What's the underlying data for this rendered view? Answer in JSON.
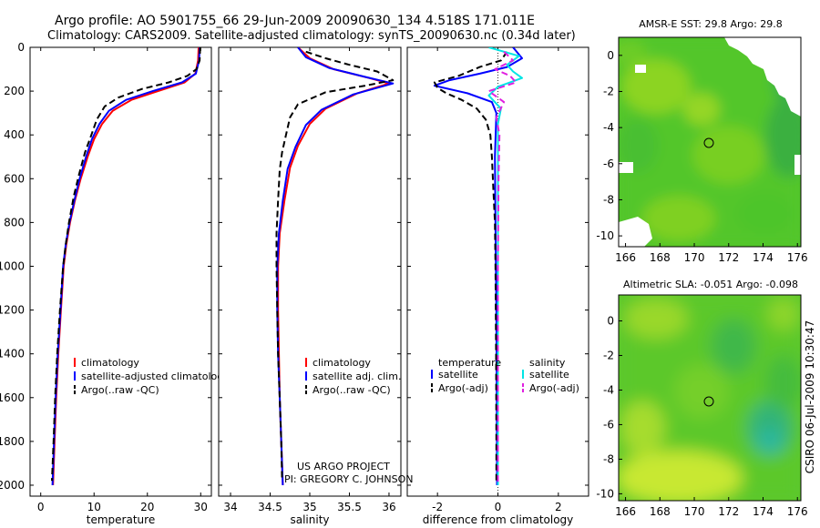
{
  "header": {
    "line1": "Argo profile: AO 5901755_66 29-Jun-2009 20090630_134 4.518S 171.011E",
    "line2": "Climatology: CARS2009. Satellite-adjusted climatology: synTS_20090630.nc (0.34d later)"
  },
  "side_label": "CSIRO 06-Jul-2009 10:30:47",
  "project": {
    "line1": "US ARGO PROJECT",
    "line2": "PI: GREGORY C. JOHNSON"
  },
  "colors": {
    "climatology": "#ff0000",
    "satellite": "#0000ff",
    "argo": "#000000",
    "sal_satellite": "#00e5e5",
    "sal_argo": "#e020e0"
  },
  "chart_data": [
    {
      "id": "temperature",
      "type": "line",
      "xlabel": "temperature",
      "xlim": [
        -2,
        32
      ],
      "ylim": [
        2050,
        0
      ],
      "xticks": [
        0,
        10,
        20,
        30
      ],
      "yticks": [
        0,
        200,
        400,
        600,
        800,
        1000,
        1200,
        1400,
        1600,
        1800,
        2000
      ],
      "legend": [
        "climatology",
        "satellite-adjusted climatology",
        "Argo(..raw -QC)"
      ],
      "series": [
        {
          "name": "climatology",
          "style": "solid",
          "color": "#ff0000",
          "points": [
            [
              29.6,
              0
            ],
            [
              29.5,
              60
            ],
            [
              29.0,
              120
            ],
            [
              27.0,
              160
            ],
            [
              22.0,
              200
            ],
            [
              17.0,
              240
            ],
            [
              13.5,
              290
            ],
            [
              11.5,
              350
            ],
            [
              10.0,
              420
            ],
            [
              8.8,
              500
            ],
            [
              7.5,
              600
            ],
            [
              6.4,
              700
            ],
            [
              5.5,
              800
            ],
            [
              4.8,
              900
            ],
            [
              4.3,
              1000
            ],
            [
              3.8,
              1200
            ],
            [
              3.3,
              1400
            ],
            [
              2.9,
              1600
            ],
            [
              2.6,
              1800
            ],
            [
              2.3,
              2000
            ]
          ]
        },
        {
          "name": "satellite-adjusted climatology",
          "style": "solid",
          "color": "#0000ff",
          "points": [
            [
              29.8,
              0
            ],
            [
              29.7,
              60
            ],
            [
              29.1,
              120
            ],
            [
              26.5,
              160
            ],
            [
              21.0,
              200
            ],
            [
              16.0,
              240
            ],
            [
              12.8,
              290
            ],
            [
              11.0,
              350
            ],
            [
              9.6,
              420
            ],
            [
              8.5,
              500
            ],
            [
              7.3,
              600
            ],
            [
              6.3,
              700
            ],
            [
              5.4,
              800
            ],
            [
              4.7,
              900
            ],
            [
              4.2,
              1000
            ],
            [
              3.7,
              1200
            ],
            [
              3.2,
              1400
            ],
            [
              2.8,
              1600
            ],
            [
              2.5,
              1800
            ],
            [
              2.2,
              2000
            ]
          ]
        },
        {
          "name": "Argo(..raw -QC)",
          "style": "dashed",
          "color": "#000000",
          "points": [
            [
              29.9,
              0
            ],
            [
              29.8,
              60
            ],
            [
              29.2,
              100
            ],
            [
              27.5,
              130
            ],
            [
              24.0,
              160
            ],
            [
              19.0,
              190
            ],
            [
              14.5,
              230
            ],
            [
              12.0,
              270
            ],
            [
              10.5,
              330
            ],
            [
              9.5,
              400
            ],
            [
              8.3,
              480
            ],
            [
              7.2,
              580
            ],
            [
              6.2,
              680
            ],
            [
              5.3,
              800
            ],
            [
              4.7,
              900
            ],
            [
              4.2,
              1000
            ],
            [
              3.6,
              1200
            ],
            [
              3.1,
              1400
            ],
            [
              2.7,
              1600
            ],
            [
              2.4,
              1800
            ],
            [
              2.1,
              1980
            ]
          ]
        }
      ]
    },
    {
      "id": "salinity",
      "type": "line",
      "xlabel": "salinity",
      "xlim": [
        33.85,
        36.15
      ],
      "ylim": [
        2050,
        0
      ],
      "xticks": [
        34,
        34.5,
        35,
        35.5,
        36
      ],
      "xticklabels": [
        "34",
        "34.5",
        "35",
        "35.5",
        "36"
      ],
      "legend": [
        "climatology",
        "satellite adj. clim.",
        "Argo(..raw -QC)"
      ],
      "series": [
        {
          "name": "climatology",
          "style": "solid",
          "color": "#ff0000",
          "points": [
            [
              34.85,
              0
            ],
            [
              35.0,
              50
            ],
            [
              35.3,
              100
            ],
            [
              35.75,
              140
            ],
            [
              36.0,
              165
            ],
            [
              35.6,
              210
            ],
            [
              35.2,
              280
            ],
            [
              35.0,
              350
            ],
            [
              34.85,
              450
            ],
            [
              34.75,
              550
            ],
            [
              34.68,
              700
            ],
            [
              34.62,
              850
            ],
            [
              34.6,
              1000
            ],
            [
              34.6,
              1200
            ],
            [
              34.61,
              1400
            ],
            [
              34.62,
              1600
            ],
            [
              34.64,
              1800
            ],
            [
              34.66,
              2000
            ]
          ]
        },
        {
          "name": "satellite adj. clim.",
          "style": "solid",
          "color": "#0000ff",
          "points": [
            [
              34.85,
              0
            ],
            [
              34.95,
              45
            ],
            [
              35.25,
              95
            ],
            [
              35.7,
              135
            ],
            [
              36.05,
              165
            ],
            [
              35.55,
              215
            ],
            [
              35.15,
              285
            ],
            [
              34.95,
              355
            ],
            [
              34.82,
              455
            ],
            [
              34.72,
              555
            ],
            [
              34.66,
              700
            ],
            [
              34.61,
              850
            ],
            [
              34.59,
              1000
            ],
            [
              34.59,
              1200
            ],
            [
              34.6,
              1400
            ],
            [
              34.62,
              1600
            ],
            [
              34.64,
              1800
            ],
            [
              34.66,
              2000
            ]
          ]
        },
        {
          "name": "Argo(..raw -QC)",
          "style": "dashed",
          "color": "#000000",
          "points": [
            [
              34.95,
              20
            ],
            [
              35.2,
              50
            ],
            [
              35.5,
              80
            ],
            [
              35.85,
              110
            ],
            [
              36.05,
              150
            ],
            [
              35.7,
              175
            ],
            [
              35.2,
              205
            ],
            [
              34.85,
              260
            ],
            [
              34.75,
              320
            ],
            [
              34.7,
              400
            ],
            [
              34.65,
              480
            ],
            [
              34.62,
              560
            ],
            [
              34.6,
              700
            ],
            [
              34.58,
              850
            ],
            [
              34.58,
              1000
            ],
            [
              34.59,
              1200
            ],
            [
              34.6,
              1400
            ],
            [
              34.62,
              1600
            ],
            [
              34.64,
              1800
            ],
            [
              34.65,
              1980
            ]
          ]
        }
      ]
    },
    {
      "id": "difference",
      "type": "line",
      "xlabel": "difference from climatology",
      "xlim": [
        -3.0,
        3.0
      ],
      "ylim": [
        2050,
        0
      ],
      "xticks": [
        -2,
        0,
        2
      ],
      "legend_headers": [
        "temperature",
        "salinity"
      ],
      "legend": [
        "satellite",
        "Argo(-adj)",
        "satellite",
        "Argo(-adj)"
      ],
      "series": [
        {
          "name": "temperature satellite",
          "style": "solid",
          "color": "#0000ff",
          "points": [
            [
              0.5,
              0
            ],
            [
              0.8,
              50
            ],
            [
              0.3,
              90
            ],
            [
              -0.6,
              120
            ],
            [
              -1.6,
              150
            ],
            [
              -2.1,
              175
            ],
            [
              -1.0,
              210
            ],
            [
              -0.2,
              250
            ],
            [
              -0.05,
              300
            ],
            [
              -0.1,
              500
            ],
            [
              -0.08,
              800
            ],
            [
              -0.05,
              1200
            ],
            [
              -0.04,
              1600
            ],
            [
              -0.03,
              2000
            ]
          ]
        },
        {
          "name": "temperature Argo(-adj)",
          "style": "dashed",
          "color": "#000000",
          "points": [
            [
              0.3,
              20
            ],
            [
              0.1,
              60
            ],
            [
              -0.6,
              90
            ],
            [
              -1.3,
              130
            ],
            [
              -2.1,
              160
            ],
            [
              -2.0,
              185
            ],
            [
              -1.7,
              210
            ],
            [
              -1.2,
              240
            ],
            [
              -0.7,
              280
            ],
            [
              -0.4,
              330
            ],
            [
              -0.25,
              400
            ],
            [
              -0.2,
              500
            ],
            [
              -0.15,
              650
            ],
            [
              -0.1,
              800
            ],
            [
              -0.08,
              1000
            ],
            [
              -0.06,
              1400
            ],
            [
              -0.05,
              1800
            ],
            [
              -0.05,
              1990
            ]
          ]
        },
        {
          "name": "salinity satellite",
          "style": "solid",
          "color": "#00e5e5",
          "points": [
            [
              -0.3,
              0
            ],
            [
              0.7,
              40
            ],
            [
              0.3,
              80
            ],
            [
              0.5,
              110
            ],
            [
              0.8,
              140
            ],
            [
              0.0,
              180
            ],
            [
              -0.3,
              220
            ],
            [
              0.1,
              280
            ],
            [
              0.0,
              350
            ],
            [
              0.0,
              600
            ],
            [
              0.0,
              900
            ],
            [
              0.0,
              1300
            ],
            [
              0.0,
              1700
            ],
            [
              0.0,
              2000
            ]
          ]
        },
        {
          "name": "salinity Argo(-adj)",
          "style": "dashed",
          "color": "#e020e0",
          "points": [
            [
              0.2,
              20
            ],
            [
              0.5,
              60
            ],
            [
              -0.1,
              100
            ],
            [
              0.4,
              130
            ],
            [
              0.6,
              160
            ],
            [
              -0.3,
              200
            ],
            [
              0.2,
              250
            ],
            [
              -0.05,
              320
            ],
            [
              0.05,
              400
            ],
            [
              0.02,
              600
            ],
            [
              0.0,
              1000
            ],
            [
              0.0,
              1500
            ],
            [
              0.0,
              1990
            ]
          ]
        }
      ]
    },
    {
      "id": "sst_map",
      "type": "heatmap",
      "title": "AMSR-E SST: 29.8 Argo: 29.8",
      "xlim": [
        165.6,
        176.2
      ],
      "ylim": [
        -10.6,
        1.0
      ],
      "xticks": [
        166,
        168,
        170,
        172,
        174,
        176
      ],
      "yticks": [
        0,
        -2,
        -4,
        -6,
        -8,
        -10
      ],
      "marker": [
        171.011,
        -4.518
      ]
    },
    {
      "id": "sla_map",
      "type": "heatmap",
      "title": "Altimetric SLA: -0.051 Argo: -0.098",
      "xlim": [
        165.6,
        176.2
      ],
      "ylim": [
        -10.4,
        1.5
      ],
      "xticks": [
        166,
        168,
        170,
        172,
        174,
        176
      ],
      "yticks": [
        0,
        -2,
        -4,
        -6,
        -8,
        -10
      ],
      "marker": [
        171.011,
        -4.518
      ]
    }
  ]
}
